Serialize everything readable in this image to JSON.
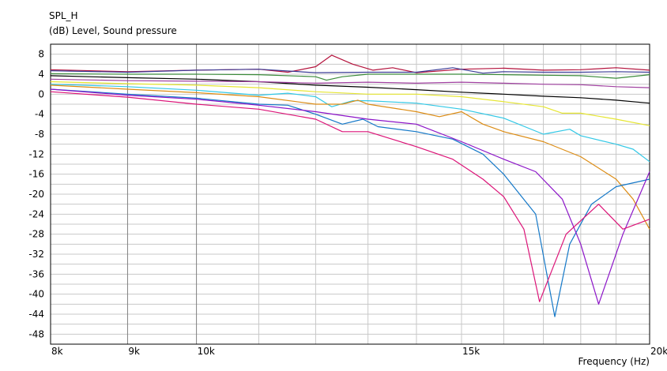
{
  "chart_data": {
    "type": "line",
    "title": "SPL_H",
    "ylabel": "(dB)  Level, Sound pressure",
    "xlabel": "Frequency  (Hz)",
    "xscale": "log",
    "xlim": [
      8000,
      20000
    ],
    "ylim": [
      -50,
      10
    ],
    "grid": true,
    "x_ticks": [
      {
        "value": 8000,
        "label": "8k"
      },
      {
        "value": 9000,
        "label": "9k"
      },
      {
        "value": 10000,
        "label": "10k"
      },
      {
        "value": 15000,
        "label": "15k"
      },
      {
        "value": 20000,
        "label": "20k"
      }
    ],
    "y_ticks": [
      8,
      4,
      0,
      -4,
      -8,
      -12,
      -16,
      -20,
      -24,
      -28,
      -32,
      -36,
      -40,
      -44,
      -48
    ],
    "series": [
      {
        "color": "#b4123c",
        "points": [
          [
            8000,
            4.9
          ],
          [
            9000,
            4.5
          ],
          [
            10000,
            4.8
          ],
          [
            11000,
            5
          ],
          [
            11500,
            4.4
          ],
          [
            12000,
            5.5
          ],
          [
            12300,
            7.8
          ],
          [
            12700,
            6
          ],
          [
            13100,
            4.8
          ],
          [
            13500,
            5.3
          ],
          [
            14000,
            4.3
          ],
          [
            15000,
            5
          ],
          [
            16000,
            5.2
          ],
          [
            17000,
            4.8
          ],
          [
            18000,
            4.9
          ],
          [
            19000,
            5.3
          ],
          [
            20000,
            4.8
          ]
        ]
      },
      {
        "color": "#3c3c96",
        "points": [
          [
            8000,
            4.7
          ],
          [
            9000,
            4.4
          ],
          [
            10000,
            4.8
          ],
          [
            11000,
            5
          ],
          [
            12000,
            4.3
          ],
          [
            13000,
            4.4
          ],
          [
            14000,
            4.4
          ],
          [
            14800,
            5.3
          ],
          [
            15500,
            4.2
          ],
          [
            16000,
            4.5
          ],
          [
            17000,
            4.4
          ],
          [
            18000,
            4.4
          ],
          [
            19000,
            4.5
          ],
          [
            20000,
            4.4
          ]
        ]
      },
      {
        "color": "#3c8c3c",
        "points": [
          [
            8000,
            4.1
          ],
          [
            9000,
            4.0
          ],
          [
            10000,
            4.0
          ],
          [
            11000,
            3.9
          ],
          [
            12000,
            3.5
          ],
          [
            12200,
            2.8
          ],
          [
            12500,
            3.5
          ],
          [
            13000,
            4.0
          ],
          [
            14000,
            4.0
          ],
          [
            15000,
            4.0
          ],
          [
            16000,
            3.9
          ],
          [
            17000,
            3.8
          ],
          [
            18000,
            3.7
          ],
          [
            19000,
            3.2
          ],
          [
            20000,
            3.9
          ]
        ]
      },
      {
        "color": "#000000",
        "points": [
          [
            8000,
            3.7
          ],
          [
            9000,
            3.3
          ],
          [
            10000,
            3.0
          ],
          [
            11000,
            2.5
          ],
          [
            12000,
            1.8
          ],
          [
            13000,
            1.4
          ],
          [
            14000,
            0.9
          ],
          [
            15000,
            0.4
          ],
          [
            16000,
            0.0
          ],
          [
            17000,
            -0.4
          ],
          [
            18000,
            -0.7
          ],
          [
            19000,
            -1.2
          ],
          [
            20000,
            -1.8
          ]
        ]
      },
      {
        "color": "#a040a0",
        "points": [
          [
            8000,
            3.0
          ],
          [
            9000,
            2.7
          ],
          [
            10000,
            2.6
          ],
          [
            11000,
            2.5
          ],
          [
            12000,
            2.2
          ],
          [
            13000,
            2.4
          ],
          [
            14000,
            2.2
          ],
          [
            15000,
            2.4
          ],
          [
            16000,
            2.2
          ],
          [
            17000,
            2.0
          ],
          [
            18000,
            1.9
          ],
          [
            19000,
            1.5
          ],
          [
            20000,
            1.3
          ]
        ]
      },
      {
        "color": "#e6e632",
        "points": [
          [
            8000,
            2.5
          ],
          [
            9000,
            2.1
          ],
          [
            10000,
            1.8
          ],
          [
            11000,
            1.3
          ],
          [
            12000,
            0.5
          ],
          [
            13000,
            0.0
          ],
          [
            14000,
            0.0
          ],
          [
            15000,
            -0.5
          ],
          [
            16000,
            -1.5
          ],
          [
            17000,
            -2.5
          ],
          [
            17500,
            -3.8
          ],
          [
            18000,
            -3.8
          ],
          [
            19000,
            -5.0
          ],
          [
            20000,
            -6.3
          ]
        ]
      },
      {
        "color": "#32c8e6",
        "points": [
          [
            8000,
            2.0
          ],
          [
            9000,
            1.5
          ],
          [
            10000,
            0.8
          ],
          [
            11000,
            -0.2
          ],
          [
            11500,
            0.2
          ],
          [
            12000,
            -0.5
          ],
          [
            12300,
            -2.5
          ],
          [
            12700,
            -1.3
          ],
          [
            13000,
            -1.3
          ],
          [
            14000,
            -1.8
          ],
          [
            15000,
            -3.0
          ],
          [
            16000,
            -4.8
          ],
          [
            17000,
            -8.0
          ],
          [
            17700,
            -7.0
          ],
          [
            18000,
            -8.3
          ],
          [
            19000,
            -10.0
          ],
          [
            19500,
            -11.0
          ],
          [
            20000,
            -13.5
          ]
        ]
      },
      {
        "color": "#dc8c14",
        "points": [
          [
            8000,
            1.8
          ],
          [
            9000,
            1.0
          ],
          [
            10000,
            0.3
          ],
          [
            11000,
            -0.5
          ],
          [
            12000,
            -2.0
          ],
          [
            12500,
            -2.0
          ],
          [
            12800,
            -1.2
          ],
          [
            13000,
            -2.0
          ],
          [
            14000,
            -3.5
          ],
          [
            14500,
            -4.5
          ],
          [
            15000,
            -3.5
          ],
          [
            15500,
            -6.0
          ],
          [
            16000,
            -7.5
          ],
          [
            17000,
            -9.5
          ],
          [
            18000,
            -12.5
          ],
          [
            19000,
            -17.0
          ],
          [
            19500,
            -21.0
          ],
          [
            20000,
            -27.0
          ]
        ]
      },
      {
        "color": "#1478c8",
        "points": [
          [
            8000,
            1.0
          ],
          [
            9000,
            0.0
          ],
          [
            10000,
            -0.8
          ],
          [
            11000,
            -2.0
          ],
          [
            11500,
            -2.2
          ],
          [
            12000,
            -4.0
          ],
          [
            12500,
            -6.0
          ],
          [
            12900,
            -5.0
          ],
          [
            13200,
            -6.5
          ],
          [
            14000,
            -7.5
          ],
          [
            14800,
            -9.0
          ],
          [
            15500,
            -12.0
          ],
          [
            16000,
            -16.0
          ],
          [
            16800,
            -24.0
          ],
          [
            17300,
            -44.5
          ],
          [
            17700,
            -30.0
          ],
          [
            18300,
            -22.0
          ],
          [
            19000,
            -18.5
          ],
          [
            20000,
            -17.0
          ]
        ]
      },
      {
        "color": "#8c14c8",
        "points": [
          [
            8000,
            1.0
          ],
          [
            9000,
            -0.2
          ],
          [
            10000,
            -1.0
          ],
          [
            11000,
            -2.2
          ],
          [
            12000,
            -3.5
          ],
          [
            13000,
            -5.0
          ],
          [
            14000,
            -6.0
          ],
          [
            15000,
            -9.5
          ],
          [
            16000,
            -13.0
          ],
          [
            16800,
            -15.5
          ],
          [
            17500,
            -21.0
          ],
          [
            18000,
            -30.0
          ],
          [
            18500,
            -42.0
          ],
          [
            19200,
            -28.0
          ],
          [
            20000,
            -15.5
          ]
        ]
      },
      {
        "color": "#dc1478",
        "points": [
          [
            8000,
            0.5
          ],
          [
            9000,
            -0.6
          ],
          [
            10000,
            -2.0
          ],
          [
            11000,
            -3.0
          ],
          [
            12000,
            -5.0
          ],
          [
            12500,
            -7.5
          ],
          [
            13000,
            -7.5
          ],
          [
            14000,
            -10.5
          ],
          [
            14800,
            -13.0
          ],
          [
            15500,
            -17.0
          ],
          [
            16000,
            -20.5
          ],
          [
            16500,
            -27.0
          ],
          [
            16900,
            -41.5
          ],
          [
            17600,
            -28.0
          ],
          [
            18500,
            -22.0
          ],
          [
            19200,
            -27.0
          ],
          [
            20000,
            -25.0
          ]
        ]
      }
    ]
  }
}
